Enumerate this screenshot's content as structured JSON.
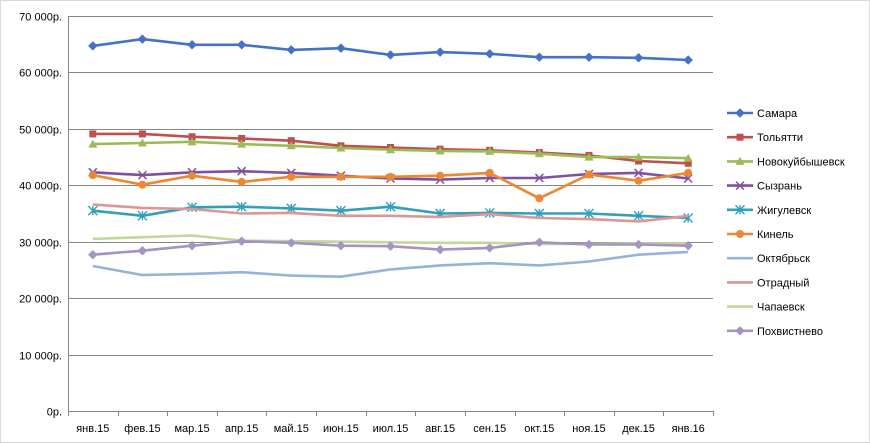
{
  "chart_data": {
    "type": "line",
    "title": "",
    "xlabel": "",
    "ylabel": "",
    "categories": [
      "янв.15",
      "фев.15",
      "мар.15",
      "апр.15",
      "май.15",
      "июн.15",
      "июл.15",
      "авг.15",
      "сен.15",
      "окт.15",
      "ноя.15",
      "дек.15",
      "янв.16"
    ],
    "ylim": [
      0,
      70000
    ],
    "yticks": [
      0,
      10000,
      20000,
      30000,
      40000,
      50000,
      60000,
      70000
    ],
    "ytick_labels": [
      "0р.",
      "10 000р.",
      "20 000р.",
      "30 000р.",
      "40 000р.",
      "50 000р.",
      "60 000р.",
      "70 000р."
    ],
    "grid": "horizontal",
    "legend_position": "right",
    "series": [
      {
        "name": "Самара",
        "color": "#4472C4",
        "marker": "diamond",
        "values": [
          64700,
          65900,
          64900,
          64900,
          64000,
          64300,
          63100,
          63600,
          63300,
          62700,
          62700,
          62600,
          62200
        ]
      },
      {
        "name": "Тольятти",
        "color": "#C0504D",
        "marker": "square",
        "values": [
          49100,
          49100,
          48600,
          48300,
          47900,
          47000,
          46700,
          46400,
          46200,
          45800,
          45300,
          44300,
          43900
        ]
      },
      {
        "name": "Новокуйбышевск",
        "color": "#9BBB59",
        "marker": "triangle",
        "values": [
          47300,
          47500,
          47700,
          47300,
          47000,
          46600,
          46300,
          46100,
          46000,
          45600,
          45000,
          45000,
          44800
        ]
      },
      {
        "name": "Сызрань",
        "color": "#7F4FA1",
        "marker": "x",
        "values": [
          42300,
          41800,
          42300,
          42500,
          42200,
          41700,
          41200,
          41000,
          41300,
          41300,
          42000,
          42200,
          41200
        ]
      },
      {
        "name": "Жигулевск",
        "color": "#31A0B8",
        "marker": "star",
        "values": [
          35500,
          34600,
          36100,
          36200,
          35900,
          35500,
          36200,
          35000,
          35100,
          35000,
          35000,
          34600,
          34200
        ]
      },
      {
        "name": "Кинель",
        "color": "#ED8732",
        "marker": "circle",
        "values": [
          41800,
          40100,
          41700,
          40600,
          41500,
          41500,
          41500,
          41700,
          42200,
          37700,
          41900,
          40800,
          42200
        ]
      },
      {
        "name": "Октябрьск",
        "color": "#95B3D7",
        "marker": "none",
        "values": [
          25700,
          24100,
          24300,
          24600,
          24000,
          23800,
          25100,
          25800,
          26200,
          25800,
          26500,
          27700,
          28200
        ]
      },
      {
        "name": "Отрадный",
        "color": "#D99795",
        "marker": "none",
        "values": [
          36600,
          36000,
          35800,
          35000,
          35100,
          34600,
          34600,
          34400,
          34900,
          34200,
          34000,
          33600,
          34600
        ]
      },
      {
        "name": "Чапаевск",
        "color": "#C4D79B",
        "marker": "none",
        "values": [
          30500,
          30800,
          31100,
          30200,
          30100,
          30000,
          29900,
          29800,
          29800,
          29600,
          29600,
          29700,
          29700
        ]
      },
      {
        "name": "Похвистнево",
        "color": "#A593C2",
        "marker": "diamond",
        "values": [
          27700,
          28400,
          29300,
          30100,
          29800,
          29300,
          29200,
          28600,
          28900,
          29900,
          29500,
          29500,
          29300
        ]
      }
    ]
  }
}
